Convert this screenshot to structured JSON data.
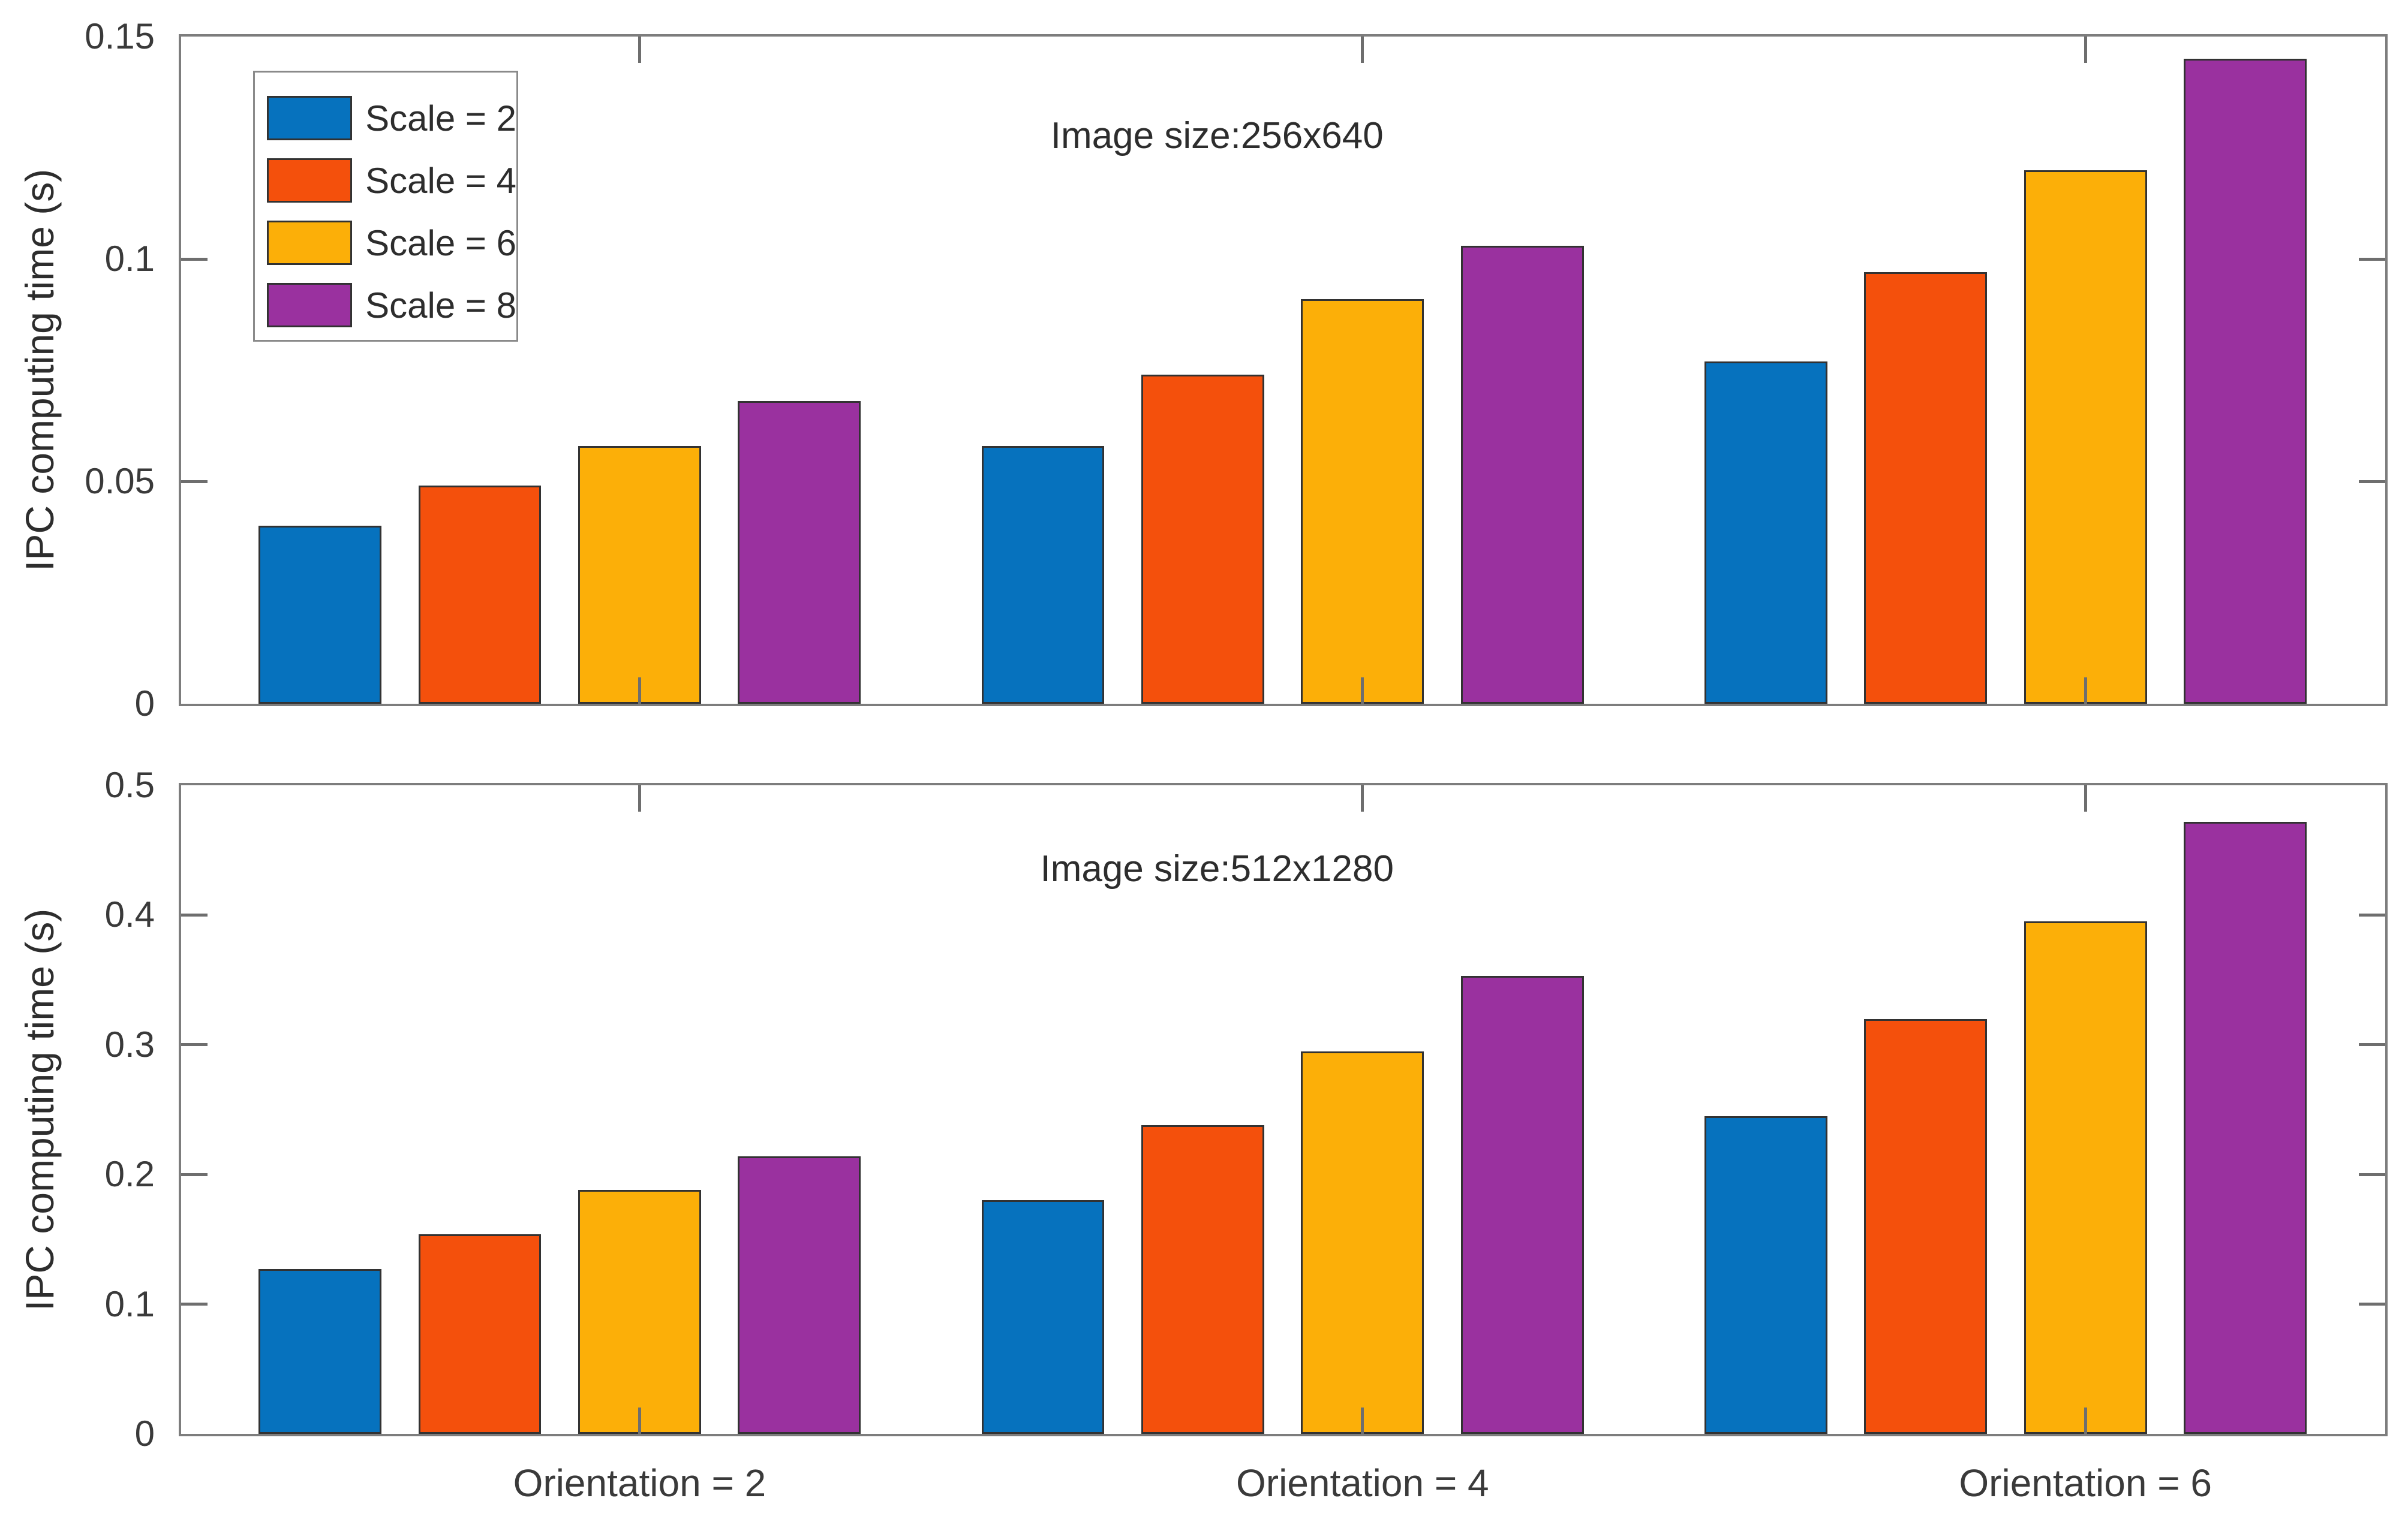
{
  "figure": {
    "background": "#ffffff",
    "axis_color": "#7d7d7d",
    "tick_color": "#6e6e6e",
    "text_color": "#3a3a3a",
    "bar_edge_color": "#323232"
  },
  "legend": {
    "position": "top-left-of-first-chart",
    "items": [
      {
        "label": "Scale = 2",
        "color": "#0672be"
      },
      {
        "label": "Scale = 4",
        "color": "#f4500c"
      },
      {
        "label": "Scale = 6",
        "color": "#fcaf08"
      },
      {
        "label": "Scale = 8",
        "color": "#9a319f"
      }
    ]
  },
  "x_axis": {
    "categories": [
      "Orientation = 2",
      "Orientation = 4",
      "Orientation = 6"
    ]
  },
  "chart_data": [
    {
      "type": "bar",
      "title": "Image size:256x640",
      "ylabel": "IPC computing time (s)",
      "ylim": [
        0,
        0.15
      ],
      "yticks": [
        0,
        0.05,
        0.1,
        0.15
      ],
      "ytick_labels": [
        "0",
        "0.05",
        "0.1",
        "0.15"
      ],
      "grid": false,
      "legend_visible": true,
      "categories": [
        "Orientation = 2",
        "Orientation = 4",
        "Orientation = 6"
      ],
      "series": [
        {
          "name": "Scale = 2",
          "color": "#0672be",
          "values": [
            0.04,
            0.058,
            0.077
          ]
        },
        {
          "name": "Scale = 4",
          "color": "#f4500c",
          "values": [
            0.049,
            0.074,
            0.097
          ]
        },
        {
          "name": "Scale = 6",
          "color": "#fcaf08",
          "values": [
            0.058,
            0.091,
            0.12
          ]
        },
        {
          "name": "Scale = 8",
          "color": "#9a319f",
          "values": [
            0.068,
            0.103,
            0.145
          ]
        }
      ]
    },
    {
      "type": "bar",
      "title": "Image size:512x1280",
      "ylabel": "IPC computing time (s)",
      "ylim": [
        0,
        0.5
      ],
      "yticks": [
        0,
        0.1,
        0.2,
        0.3,
        0.4,
        0.5
      ],
      "ytick_labels": [
        "0",
        "0.1",
        "0.2",
        "0.3",
        "0.4",
        "0.5"
      ],
      "grid": false,
      "legend_visible": false,
      "categories": [
        "Orientation = 2",
        "Orientation = 4",
        "Orientation = 6"
      ],
      "series": [
        {
          "name": "Scale = 2",
          "color": "#0672be",
          "values": [
            0.127,
            0.18,
            0.245
          ]
        },
        {
          "name": "Scale = 4",
          "color": "#f4500c",
          "values": [
            0.154,
            0.238,
            0.32
          ]
        },
        {
          "name": "Scale = 6",
          "color": "#fcaf08",
          "values": [
            0.188,
            0.295,
            0.395
          ]
        },
        {
          "name": "Scale = 8",
          "color": "#9a319f",
          "values": [
            0.214,
            0.353,
            0.472
          ]
        }
      ]
    }
  ]
}
